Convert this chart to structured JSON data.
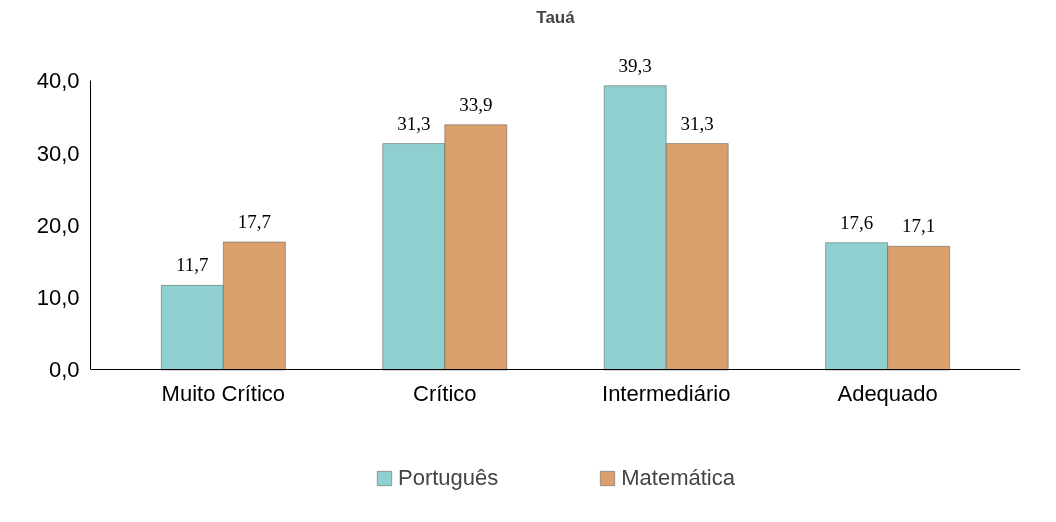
{
  "chart_data": {
    "type": "bar",
    "title": "Tauá",
    "categories": [
      "Muito Crítico",
      "Crítico",
      "Intermediário",
      "Adequado"
    ],
    "series": [
      {
        "name": "Português",
        "color": "#8fcfcf",
        "values": [
          11.7,
          31.3,
          39.3,
          17.6
        ],
        "value_labels": [
          "11,7",
          "31,3",
          "39,3",
          "17,6"
        ]
      },
      {
        "name": "Matemática",
        "color": "#d9a06c",
        "values": [
          17.7,
          33.9,
          31.3,
          17.1
        ],
        "value_labels": [
          "17,7",
          "33,9",
          "31,3",
          "17,1"
        ]
      }
    ],
    "ylim": [
      0,
      40
    ],
    "yticks": [
      {
        "value": 0,
        "label": "0,0"
      },
      {
        "value": 10,
        "label": "10,0"
      },
      {
        "value": 20,
        "label": "20,0"
      },
      {
        "value": 30,
        "label": "30,0"
      },
      {
        "value": 40,
        "label": "40,0"
      }
    ],
    "grid": false,
    "legend": "bottom"
  }
}
